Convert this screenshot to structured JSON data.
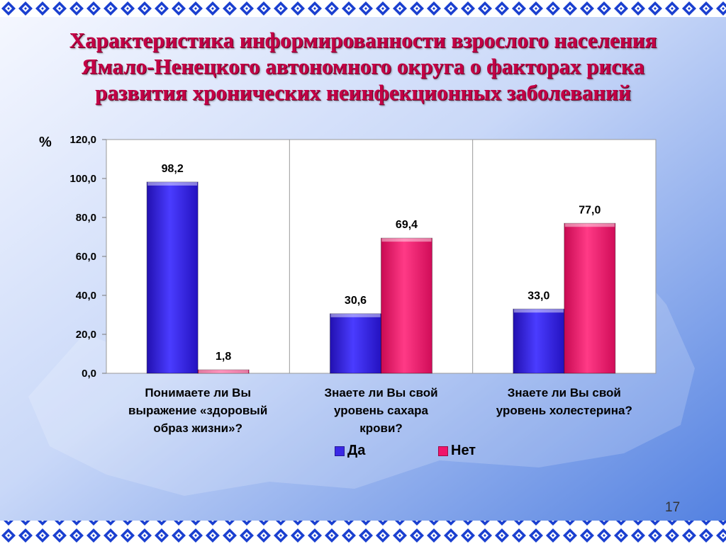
{
  "slide": {
    "title_lines": [
      "Характеристика информированности взрослого населения",
      "Ямало-Ненецкого автономного округа  о  факторах риска",
      "развития хронических неинфекционных заболеваний"
    ],
    "page_number": "17"
  },
  "colors": {
    "series_da": "#3a28e6",
    "series_net": "#f0146a",
    "title": "#c40045",
    "background_top": "#f6f8ff",
    "background_bottom": "#4f7ee0",
    "border_pattern": "#1a3fd0"
  },
  "chart_data": {
    "type": "bar",
    "ylabel": "%",
    "ylim": [
      0,
      120
    ],
    "yticks": [
      "0,0",
      "20,0",
      "40,0",
      "60,0",
      "80,0",
      "100,0",
      "120,0"
    ],
    "grid": "vertical separators between categories",
    "legend_position": "bottom",
    "categories": [
      [
        "Понимаете ли Вы",
        "выражение «здоровый",
        "образ жизни»?"
      ],
      [
        "Знаете ли Вы свой",
        "уровень сахара",
        "крови?"
      ],
      [
        "Знаете ли Вы свой",
        "уровень холестерина?"
      ]
    ],
    "series": [
      {
        "name": "Да",
        "values": [
          98.2,
          30.6,
          33.0
        ],
        "labels": [
          "98,2",
          "30,6",
          "33,0"
        ]
      },
      {
        "name": "Нет",
        "values": [
          1.8,
          69.4,
          77.0
        ],
        "labels": [
          "1,8",
          "69,4",
          "77,0"
        ]
      }
    ]
  }
}
